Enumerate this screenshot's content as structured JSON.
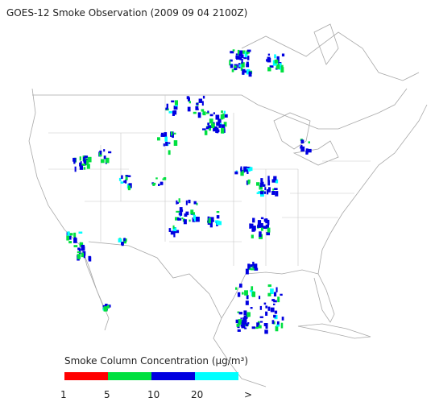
{
  "title": "GOES-12 Smoke Observation (2009 09 04  2100Z)",
  "legend": {
    "title": "Smoke Column Concentration (μg/m³)",
    "colors": [
      "#ff0000",
      "#00e040",
      "#0000e0",
      "#00ffff"
    ],
    "labels": [
      "1",
      "5",
      "10",
      "20",
      ">"
    ]
  }
}
